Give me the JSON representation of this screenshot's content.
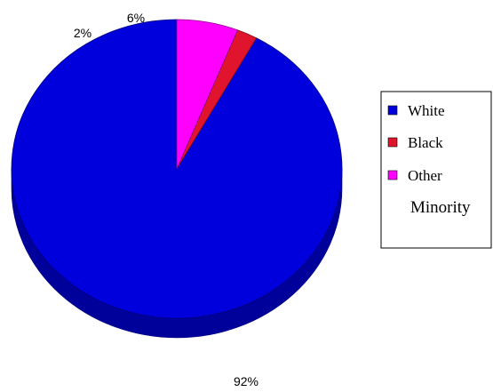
{
  "chart_data": {
    "type": "pie",
    "style": "3d",
    "legend_placement": "right",
    "slices": [
      {
        "label": "White",
        "value": 92,
        "display": "92%",
        "color": "#0000dd"
      },
      {
        "label": "Black",
        "value": 2,
        "display": "2%",
        "color": "#e0142c"
      },
      {
        "label": "Other Minority",
        "value": 6,
        "display": "6%",
        "color": "#ff00ff"
      }
    ],
    "legend": {
      "entries": [
        {
          "lines": [
            "White"
          ],
          "color": "#0000dd"
        },
        {
          "lines": [
            "Black"
          ],
          "color": "#e0142c"
        },
        {
          "lines": [
            "Other",
            "Minority"
          ],
          "color": "#ff00ff"
        }
      ]
    }
  }
}
